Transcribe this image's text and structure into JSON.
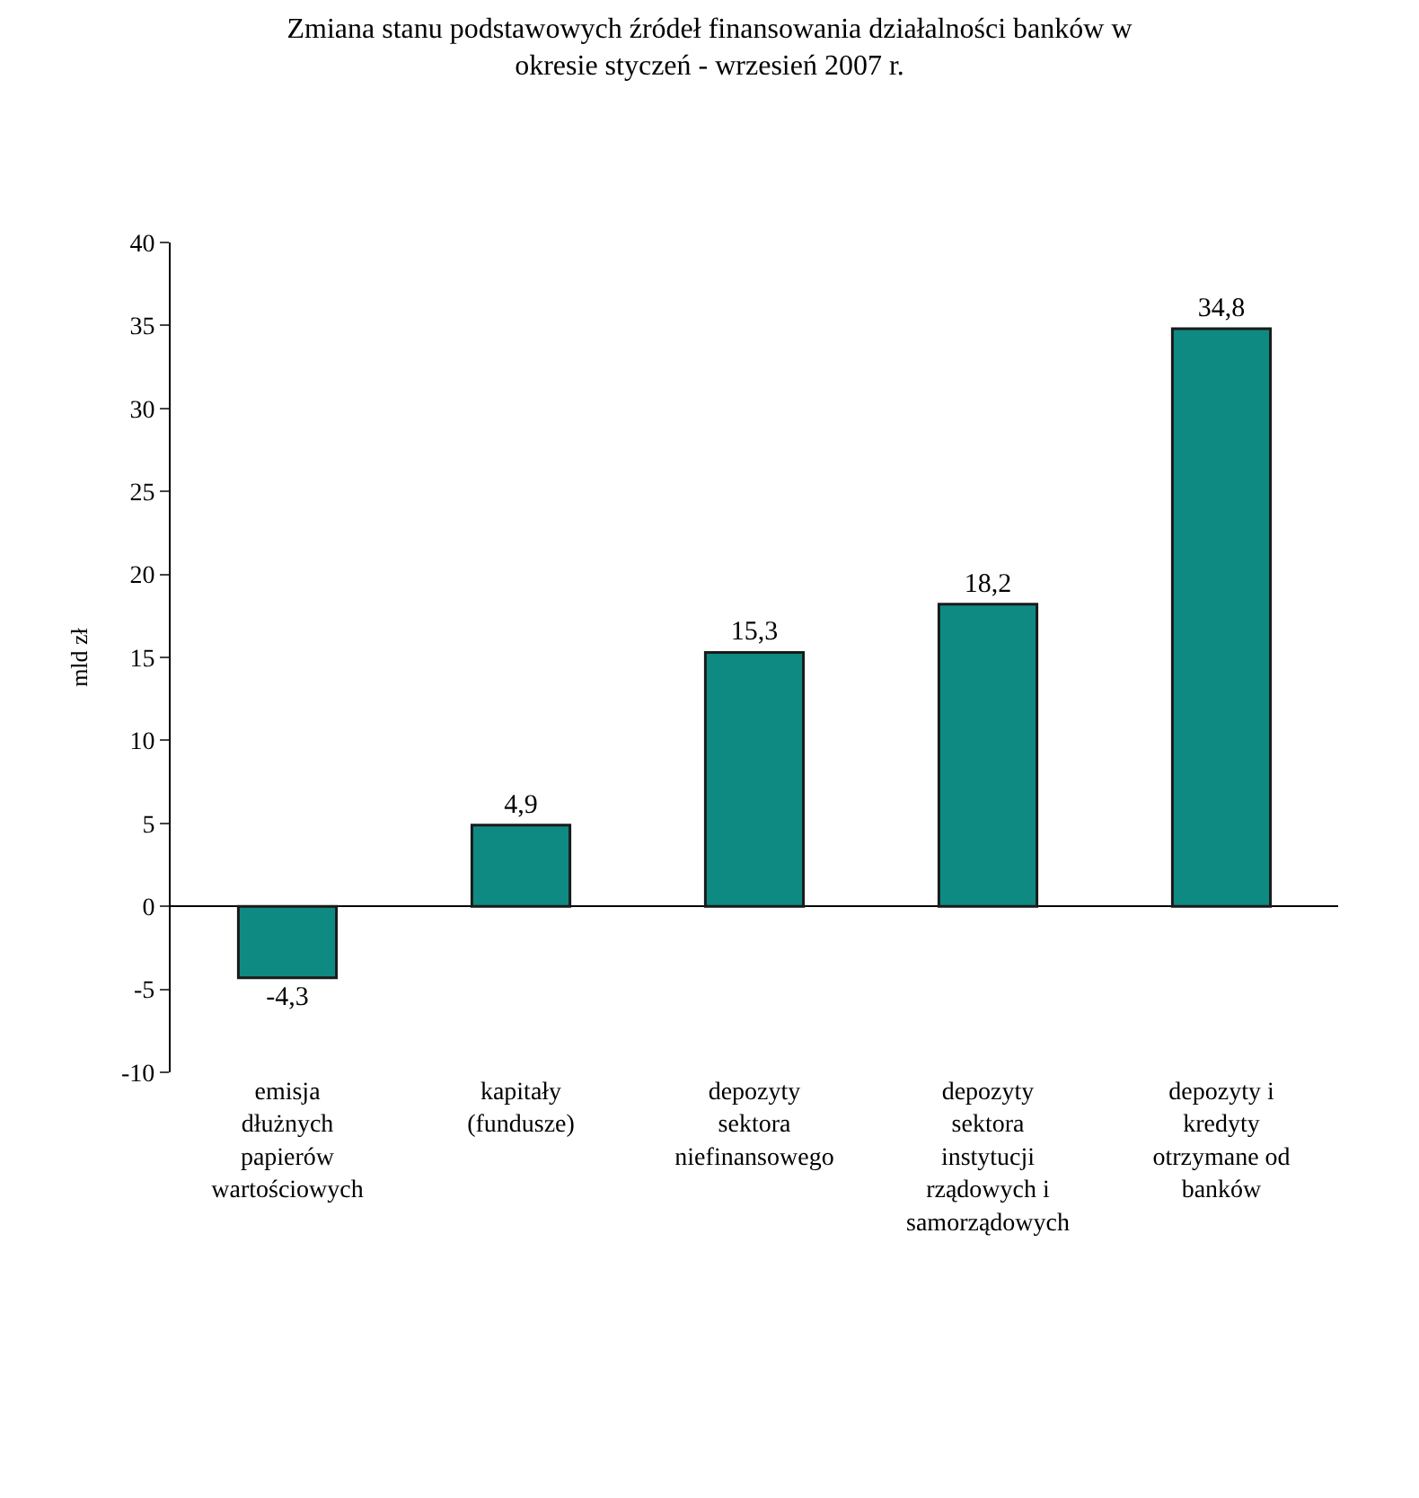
{
  "chart_data": {
    "type": "bar",
    "title": "Zmiana stanu podstawowych źródeł finansowania działalności banków w okresie styczeń - wrzesień 2007 r.",
    "ylabel": "mld zł",
    "categories": [
      "emisja dłużnych papierów wartościowych",
      "kapitały (fundusze)",
      "depozyty sektora niefinansowego",
      "depozyty sektora instytucji rządowych i samorządowych",
      "depozyty i kredyty otrzymane od banków"
    ],
    "values": [
      -4.3,
      4.9,
      15.3,
      18.2,
      34.8
    ],
    "value_labels": [
      "-4,3",
      "4,9",
      "15,3",
      "18,2",
      "34,8"
    ],
    "color": "#0f8a83",
    "ylim": [
      -10,
      40
    ],
    "yticks": [
      -10,
      -5,
      0,
      5,
      10,
      15,
      20,
      25,
      30,
      35,
      40
    ]
  }
}
